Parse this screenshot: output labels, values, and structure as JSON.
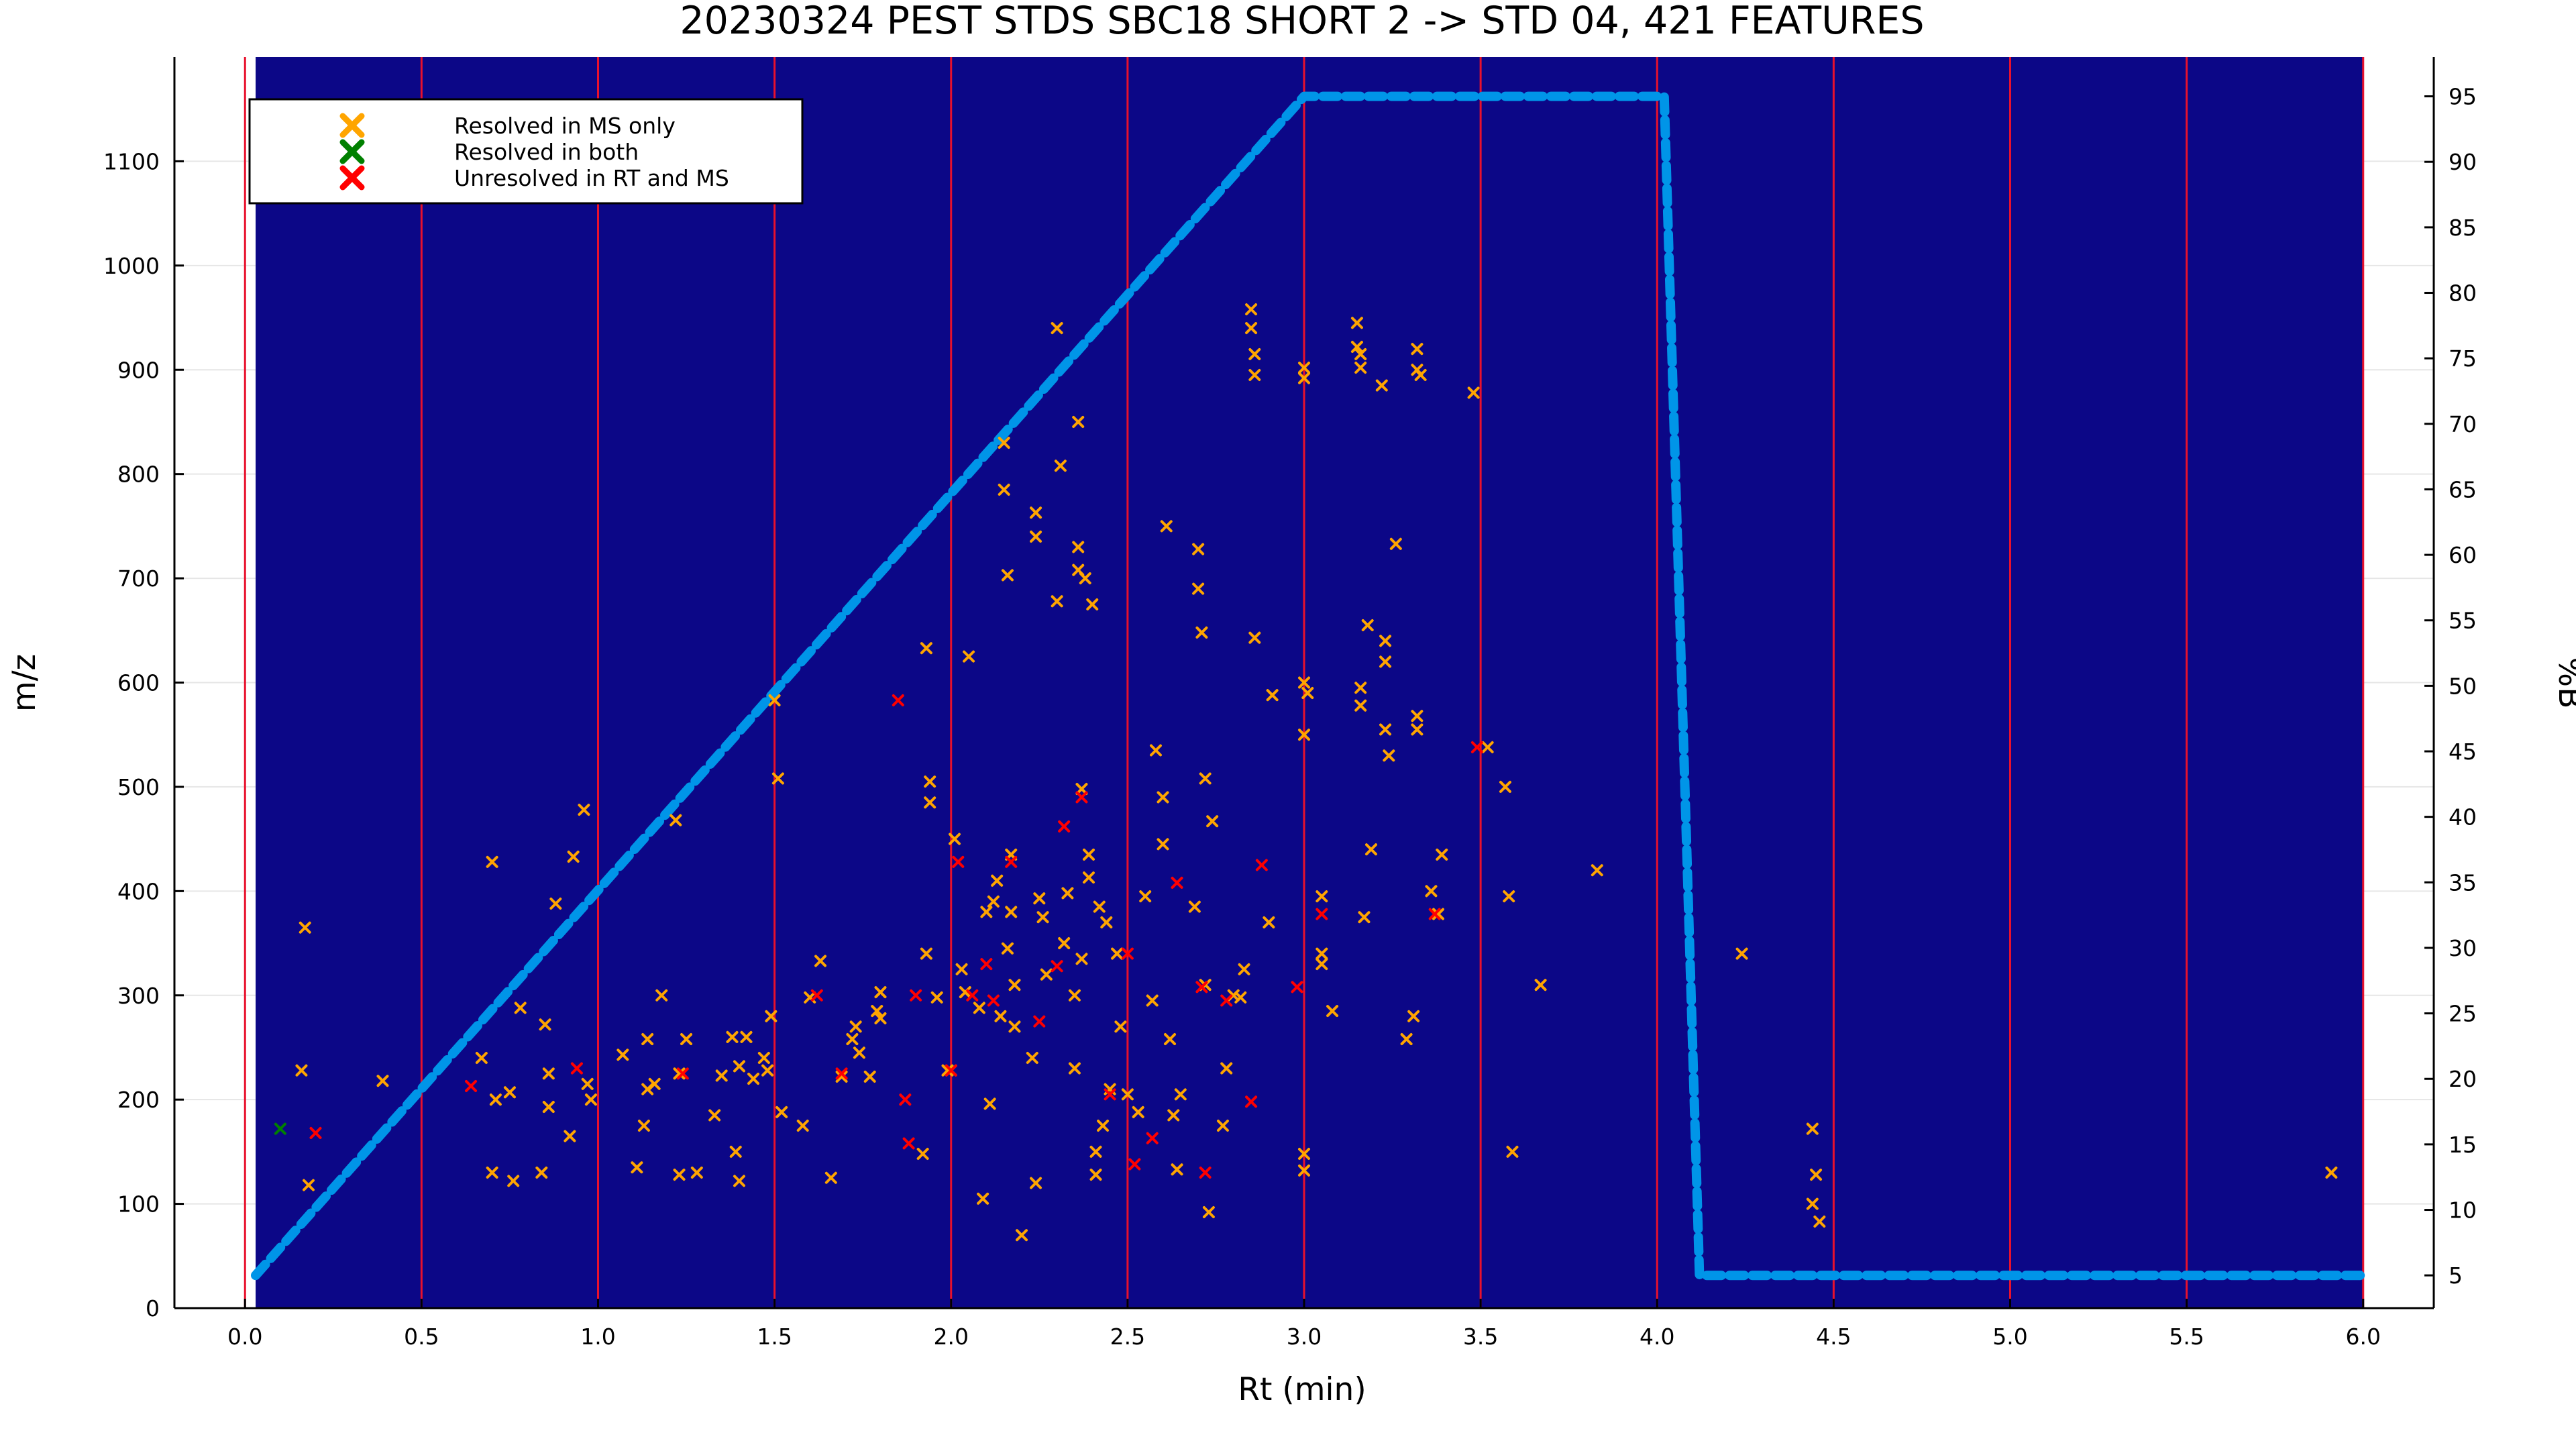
{
  "chart_data": {
    "type": "scatter",
    "title": "20230324 PEST STDS SBC18 SHORT 2 -> STD 04, 421 FEATURES",
    "xlabel": "Rt (min)",
    "ylabel": "m/z",
    "y2label": "%B",
    "xlim": [
      -0.2,
      6.2
    ],
    "ylim": [
      0,
      1200
    ],
    "y2lim": [
      2.5,
      98
    ],
    "x_ticks": [
      0.0,
      0.5,
      1.0,
      1.5,
      2.0,
      2.5,
      3.0,
      3.5,
      4.0,
      4.5,
      5.0,
      5.5,
      6.0
    ],
    "y_ticks": [
      0,
      100,
      200,
      300,
      400,
      500,
      600,
      700,
      800,
      900,
      1000,
      1100
    ],
    "y2_ticks": [
      5,
      10,
      15,
      20,
      25,
      30,
      35,
      40,
      45,
      50,
      55,
      60,
      65,
      70,
      75,
      80,
      85,
      90,
      95
    ],
    "background_range": [
      0.03,
      6.0
    ],
    "background_color": "#0c0787",
    "vertical_lines": [
      0.0,
      0.5,
      1.0,
      1.5,
      2.0,
      2.5,
      3.0,
      3.5,
      4.0,
      4.5,
      5.0,
      5.5,
      6.0
    ],
    "vertical_line_color": "#e8112d",
    "legend_position": "top-left",
    "grid": true,
    "series": [
      {
        "name": "Resolved in MS only",
        "marker": "x",
        "color": "#ffa500",
        "points": [
          [
            0.17,
            365
          ],
          [
            0.16,
            228
          ],
          [
            0.18,
            118
          ],
          [
            0.39,
            218
          ],
          [
            0.67,
            240
          ],
          [
            0.7,
            428
          ],
          [
            0.7,
            130
          ],
          [
            0.71,
            200
          ],
          [
            0.75,
            207
          ],
          [
            0.76,
            122
          ],
          [
            0.78,
            288
          ],
          [
            0.84,
            130
          ],
          [
            0.85,
            272
          ],
          [
            0.86,
            225
          ],
          [
            0.86,
            193
          ],
          [
            0.88,
            388
          ],
          [
            0.92,
            165
          ],
          [
            0.93,
            433
          ],
          [
            0.96,
            478
          ],
          [
            0.97,
            215
          ],
          [
            0.98,
            200
          ],
          [
            1.07,
            243
          ],
          [
            1.11,
            135
          ],
          [
            1.13,
            175
          ],
          [
            1.14,
            258
          ],
          [
            1.14,
            210
          ],
          [
            1.16,
            215
          ],
          [
            1.18,
            300
          ],
          [
            1.22,
            468
          ],
          [
            1.23,
            128
          ],
          [
            1.23,
            225
          ],
          [
            1.25,
            258
          ],
          [
            1.28,
            130
          ],
          [
            1.33,
            185
          ],
          [
            1.35,
            223
          ],
          [
            1.38,
            260
          ],
          [
            1.39,
            150
          ],
          [
            1.4,
            122
          ],
          [
            1.4,
            232
          ],
          [
            1.42,
            260
          ],
          [
            1.44,
            220
          ],
          [
            1.47,
            240
          ],
          [
            1.48,
            228
          ],
          [
            1.49,
            280
          ],
          [
            1.5,
            583
          ],
          [
            1.51,
            508
          ],
          [
            1.52,
            188
          ],
          [
            1.58,
            175
          ],
          [
            1.6,
            298
          ],
          [
            1.63,
            333
          ],
          [
            1.66,
            125
          ],
          [
            1.69,
            222
          ],
          [
            1.72,
            258
          ],
          [
            1.73,
            270
          ],
          [
            1.74,
            245
          ],
          [
            1.77,
            222
          ],
          [
            1.79,
            285
          ],
          [
            1.8,
            303
          ],
          [
            1.8,
            278
          ],
          [
            1.92,
            148
          ],
          [
            1.93,
            633
          ],
          [
            1.93,
            340
          ],
          [
            1.94,
            485
          ],
          [
            1.94,
            505
          ],
          [
            1.96,
            298
          ],
          [
            1.99,
            228
          ],
          [
            2.0,
            228
          ],
          [
            2.01,
            450
          ],
          [
            2.03,
            325
          ],
          [
            2.04,
            303
          ],
          [
            2.05,
            625
          ],
          [
            2.08,
            288
          ],
          [
            2.09,
            105
          ],
          [
            2.1,
            380
          ],
          [
            2.11,
            196
          ],
          [
            2.12,
            390
          ],
          [
            2.13,
            410
          ],
          [
            2.14,
            280
          ],
          [
            2.15,
            830
          ],
          [
            2.15,
            785
          ],
          [
            2.16,
            703
          ],
          [
            2.16,
            345
          ],
          [
            2.17,
            380
          ],
          [
            2.17,
            435
          ],
          [
            2.18,
            310
          ],
          [
            2.18,
            270
          ],
          [
            2.2,
            70
          ],
          [
            2.23,
            240
          ],
          [
            2.24,
            763
          ],
          [
            2.24,
            740
          ],
          [
            2.24,
            120
          ],
          [
            2.25,
            393
          ],
          [
            2.26,
            375
          ],
          [
            2.27,
            320
          ],
          [
            2.3,
            940
          ],
          [
            2.3,
            678
          ],
          [
            2.31,
            808
          ],
          [
            2.32,
            350
          ],
          [
            2.33,
            398
          ],
          [
            2.35,
            230
          ],
          [
            2.35,
            300
          ],
          [
            2.36,
            730
          ],
          [
            2.36,
            850
          ],
          [
            2.36,
            708
          ],
          [
            2.37,
            498
          ],
          [
            2.37,
            335
          ],
          [
            2.38,
            700
          ],
          [
            2.39,
            435
          ],
          [
            2.39,
            413
          ],
          [
            2.4,
            675
          ],
          [
            2.41,
            150
          ],
          [
            2.41,
            128
          ],
          [
            2.42,
            385
          ],
          [
            2.43,
            175
          ],
          [
            2.44,
            370
          ],
          [
            2.45,
            210
          ],
          [
            2.47,
            340
          ],
          [
            2.48,
            270
          ],
          [
            2.5,
            205
          ],
          [
            2.53,
            188
          ],
          [
            2.55,
            395
          ],
          [
            2.57,
            295
          ],
          [
            2.58,
            535
          ],
          [
            2.6,
            490
          ],
          [
            2.6,
            445
          ],
          [
            2.61,
            750
          ],
          [
            2.62,
            258
          ],
          [
            2.63,
            185
          ],
          [
            2.64,
            133
          ],
          [
            2.65,
            205
          ],
          [
            2.69,
            385
          ],
          [
            2.7,
            728
          ],
          [
            2.7,
            690
          ],
          [
            2.71,
            648
          ],
          [
            2.72,
            508
          ],
          [
            2.72,
            310
          ],
          [
            2.73,
            92
          ],
          [
            2.74,
            467
          ],
          [
            2.77,
            175
          ],
          [
            2.78,
            230
          ],
          [
            2.8,
            300
          ],
          [
            2.82,
            298
          ],
          [
            2.83,
            325
          ],
          [
            2.85,
            958
          ],
          [
            2.85,
            940
          ],
          [
            2.86,
            915
          ],
          [
            2.86,
            895
          ],
          [
            2.86,
            643
          ],
          [
            2.9,
            370
          ],
          [
            2.91,
            588
          ],
          [
            3.0,
            902
          ],
          [
            3.0,
            892
          ],
          [
            3.0,
            600
          ],
          [
            3.0,
            550
          ],
          [
            3.0,
            148
          ],
          [
            3.0,
            132
          ],
          [
            3.01,
            590
          ],
          [
            3.05,
            395
          ],
          [
            3.05,
            340
          ],
          [
            3.05,
            330
          ],
          [
            3.08,
            285
          ],
          [
            3.15,
            945
          ],
          [
            3.15,
            922
          ],
          [
            3.16,
            915
          ],
          [
            3.16,
            902
          ],
          [
            3.16,
            595
          ],
          [
            3.16,
            578
          ],
          [
            3.17,
            375
          ],
          [
            3.18,
            655
          ],
          [
            3.19,
            440
          ],
          [
            3.22,
            885
          ],
          [
            3.23,
            555
          ],
          [
            3.23,
            640
          ],
          [
            3.23,
            620
          ],
          [
            3.24,
            530
          ],
          [
            3.26,
            733
          ],
          [
            3.29,
            258
          ],
          [
            3.31,
            280
          ],
          [
            3.32,
            920
          ],
          [
            3.32,
            900
          ],
          [
            3.32,
            568
          ],
          [
            3.32,
            555
          ],
          [
            3.33,
            895
          ],
          [
            3.36,
            400
          ],
          [
            3.38,
            378
          ],
          [
            3.39,
            435
          ],
          [
            3.48,
            878
          ],
          [
            3.52,
            538
          ],
          [
            3.57,
            500
          ],
          [
            3.58,
            395
          ],
          [
            3.59,
            150
          ],
          [
            3.67,
            310
          ],
          [
            3.83,
            420
          ],
          [
            4.24,
            340
          ],
          [
            4.44,
            172
          ],
          [
            4.44,
            100
          ],
          [
            4.45,
            128
          ],
          [
            4.46,
            83
          ],
          [
            5.91,
            130
          ]
        ]
      },
      {
        "name": "Resolved in both",
        "marker": "x",
        "color": "#008000",
        "points": [
          [
            0.1,
            172
          ]
        ]
      },
      {
        "name": "Unresolved in RT and MS",
        "marker": "x",
        "color": "#ff0000",
        "points": [
          [
            0.2,
            168
          ],
          [
            0.64,
            213
          ],
          [
            0.94,
            230
          ],
          [
            1.24,
            225
          ],
          [
            1.62,
            300
          ],
          [
            1.69,
            225
          ],
          [
            1.85,
            583
          ],
          [
            1.87,
            200
          ],
          [
            1.88,
            158
          ],
          [
            1.9,
            300
          ],
          [
            2.0,
            228
          ],
          [
            2.02,
            428
          ],
          [
            2.06,
            300
          ],
          [
            2.1,
            330
          ],
          [
            2.12,
            295
          ],
          [
            2.17,
            428
          ],
          [
            2.25,
            275
          ],
          [
            2.3,
            328
          ],
          [
            2.32,
            462
          ],
          [
            2.37,
            490
          ],
          [
            2.45,
            205
          ],
          [
            2.5,
            340
          ],
          [
            2.52,
            138
          ],
          [
            2.57,
            163
          ],
          [
            2.64,
            408
          ],
          [
            2.71,
            308
          ],
          [
            2.72,
            130
          ],
          [
            2.78,
            295
          ],
          [
            2.85,
            198
          ],
          [
            2.88,
            425
          ],
          [
            2.98,
            308
          ],
          [
            3.05,
            378
          ],
          [
            3.37,
            378
          ],
          [
            3.49,
            538
          ]
        ]
      }
    ],
    "gradient": {
      "name": "%B",
      "color": "#0095e8",
      "x": [
        0.03,
        3.0,
        4.02,
        4.12,
        6.0
      ],
      "y": [
        5,
        95,
        95,
        5,
        5
      ]
    }
  }
}
